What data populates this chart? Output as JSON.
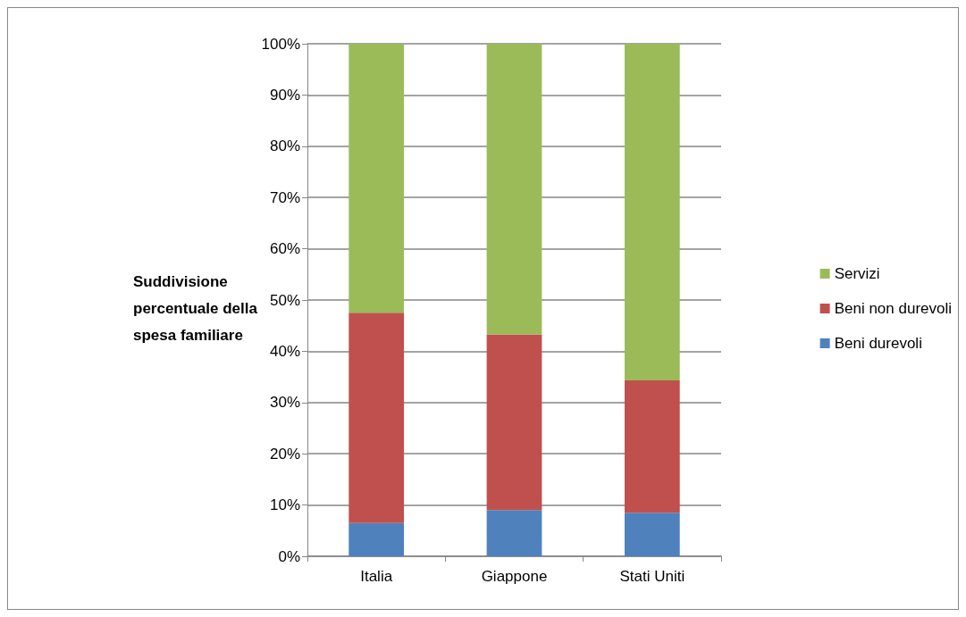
{
  "chart_data": {
    "type": "bar",
    "stacked": true,
    "ylabel": "Suddivisione percentuale della spesa familiare",
    "categories": [
      "Italia",
      "Giappone",
      "Stati Uniti"
    ],
    "series": [
      {
        "name": "Beni durevoli",
        "color": "#4f81bd",
        "values": [
          6.5,
          9.0,
          8.5
        ]
      },
      {
        "name": "Beni non durevoli",
        "color": "#c0504d",
        "values": [
          41.0,
          34.3,
          25.8
        ]
      },
      {
        "name": "Servizi",
        "color": "#9bbb59",
        "values": [
          52.5,
          56.7,
          65.7
        ]
      }
    ],
    "ylim": [
      0,
      100
    ],
    "yticks": [
      {
        "value": 0,
        "label": "0%"
      },
      {
        "value": 10,
        "label": "10%"
      },
      {
        "value": 20,
        "label": "20%"
      },
      {
        "value": 30,
        "label": "30%"
      },
      {
        "value": 40,
        "label": "40%"
      },
      {
        "value": 50,
        "label": "50%"
      },
      {
        "value": 60,
        "label": "60%"
      },
      {
        "value": 70,
        "label": "70%"
      },
      {
        "value": 80,
        "label": "80%"
      },
      {
        "value": 90,
        "label": "90%"
      },
      {
        "value": 100,
        "label": "100%"
      }
    ],
    "grid": "y",
    "legend": "right"
  }
}
